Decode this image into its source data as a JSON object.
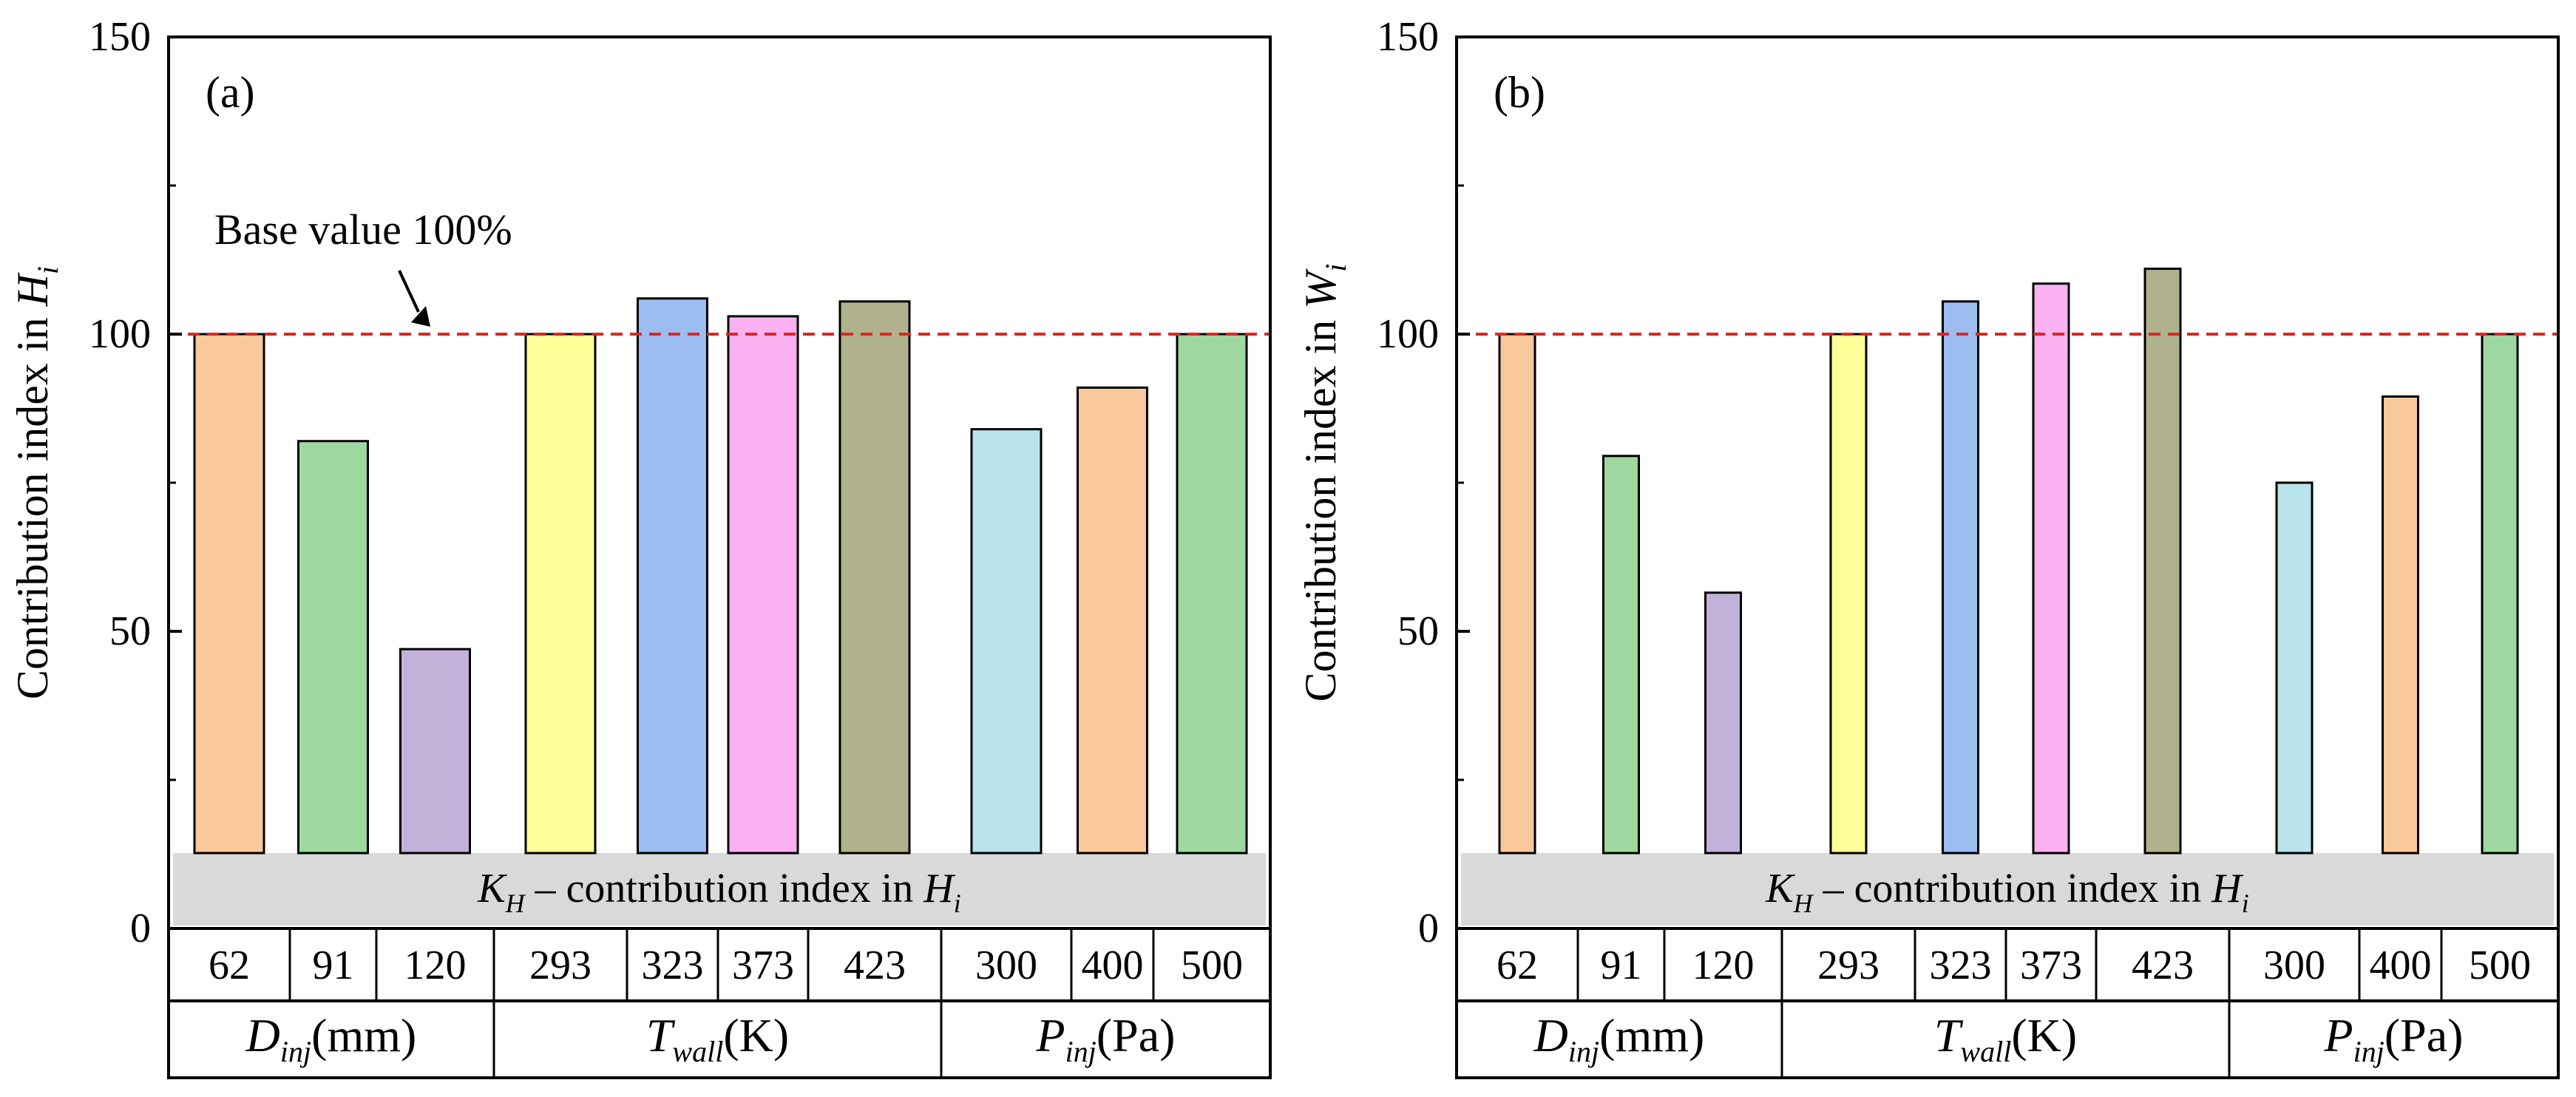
{
  "chart_data": [
    {
      "type": "bar",
      "panel_label": "(a)",
      "ylabel_main": "Contribution index in ",
      "ylabel_var": "H",
      "ylabel_sub": "i",
      "ylim": [
        0,
        150
      ],
      "yticks": [
        "0",
        "50",
        "100",
        "150"
      ],
      "yticks_values": [
        0,
        50,
        100,
        150
      ],
      "categories": [
        "62",
        "91",
        "120",
        "293",
        "323",
        "373",
        "423",
        "300",
        "400",
        "500"
      ],
      "values": [
        100,
        82,
        47,
        100,
        106,
        103,
        105.5,
        84,
        91,
        100
      ],
      "colors": [
        "#F9C89B",
        "#9ED89F",
        "#C2B1D9",
        "#FFFF99",
        "#9DBCF0",
        "#F9B1F1",
        "#B0B28E",
        "#B8E4EA",
        "#F9C89B",
        "#9ED89F"
      ],
      "groups": [
        {
          "var": "D",
          "sub": "inj",
          "unit": "(mm)",
          "count": 3
        },
        {
          "var": "T",
          "sub": "wall",
          "unit": "(K)",
          "count": 4
        },
        {
          "var": "P",
          "sub": "inj",
          "unit": "(Pa)",
          "count": 3
        }
      ],
      "reference_line": {
        "value": 100,
        "color": "#E8231E"
      },
      "annotation": "Base value  100%",
      "band_label": {
        "var": "K",
        "sub_h": "H",
        "text": " – contribution index in ",
        "var2": "H",
        "sub_i": "i"
      }
    },
    {
      "type": "bar",
      "panel_label": "(b)",
      "ylabel_main": "Contribution index in ",
      "ylabel_var": "W",
      "ylabel_sub": "i",
      "ylim": [
        0,
        150
      ],
      "yticks": [
        "0",
        "50",
        "100",
        "150"
      ],
      "yticks_values": [
        0,
        50,
        100,
        150
      ],
      "categories": [
        "62",
        "91",
        "120",
        "293",
        "323",
        "373",
        "423",
        "300",
        "400",
        "500"
      ],
      "values": [
        100,
        79.5,
        56.5,
        100,
        105.5,
        108.5,
        111,
        75,
        89.5,
        100
      ],
      "colors": [
        "#F9C89B",
        "#9ED89F",
        "#C2B1D9",
        "#FFFF99",
        "#9DBCF0",
        "#F9B1F1",
        "#B0B28E",
        "#B8E4EA",
        "#F9C89B",
        "#9ED89F"
      ],
      "groups": [
        {
          "var": "D",
          "sub": "inj",
          "unit": "(mm)",
          "count": 3
        },
        {
          "var": "T",
          "sub": "wall",
          "unit": "(K)",
          "count": 4
        },
        {
          "var": "P",
          "sub": "inj",
          "unit": "(Pa)",
          "count": 3
        }
      ],
      "reference_line": {
        "value": 100,
        "color": "#E8231E"
      },
      "annotation": "",
      "band_label": {
        "var": "K",
        "sub_h": "H",
        "text": " – contribution index in ",
        "var2": "H",
        "sub_i": "i"
      }
    }
  ]
}
